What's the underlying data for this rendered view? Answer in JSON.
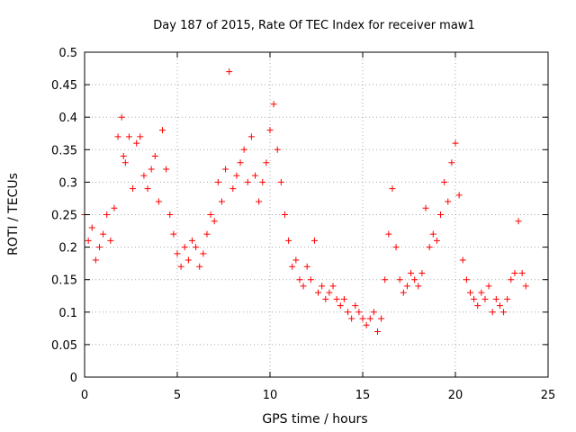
{
  "chart_data": {
    "type": "scatter",
    "title": "Day 187 of 2015, Rate Of TEC Index for receiver maw1",
    "xlabel": "GPS time / hours",
    "ylabel": "ROTI / TECUs",
    "xlim": [
      0,
      25
    ],
    "ylim": [
      0,
      0.5
    ],
    "xticks": [
      0,
      5,
      10,
      15,
      20,
      25
    ],
    "yticks": [
      0,
      0.05,
      0.1,
      0.15,
      0.2,
      0.25,
      0.3,
      0.35,
      0.4,
      0.45,
      0.5
    ],
    "xtick_labels": [
      "0",
      "5",
      "10",
      "15",
      "20",
      "25"
    ],
    "ytick_labels": [
      "0",
      "0.05",
      "0.1",
      "0.15",
      "0.2",
      "0.25",
      "0.3",
      "0.35",
      "0.4",
      "0.45",
      "0.5"
    ],
    "grid": true,
    "marker": "+",
    "color": "#ff0000",
    "series": [
      {
        "x": [
          0.0,
          0.2,
          0.4,
          0.6,
          0.8,
          1.0,
          1.2,
          1.4,
          1.6,
          1.8,
          2.0,
          2.1,
          2.2,
          2.4,
          2.6,
          2.8,
          3.0,
          3.2,
          3.4,
          3.6,
          3.8,
          4.0,
          4.2,
          4.4,
          4.6,
          4.8,
          5.0,
          5.2,
          5.4,
          5.6,
          5.8,
          6.0,
          6.2,
          6.4,
          6.6,
          6.8,
          7.0,
          7.2,
          7.4,
          7.6,
          7.8,
          8.0,
          8.2,
          8.4,
          8.6,
          8.8,
          9.0,
          9.2,
          9.4,
          9.6,
          9.8,
          10.0,
          10.2,
          10.4,
          10.6,
          10.8,
          11.0,
          11.2,
          11.4,
          11.6,
          11.8,
          12.0,
          12.2,
          12.4,
          12.6,
          12.8,
          13.0,
          13.2,
          13.4,
          13.6,
          13.8,
          14.0,
          14.2,
          14.4,
          14.6,
          14.8,
          15.0,
          15.2,
          15.4,
          15.6,
          15.8,
          16.0,
          16.2,
          16.4,
          16.6,
          16.8,
          17.0,
          17.2,
          17.4,
          17.6,
          17.8,
          18.0,
          18.2,
          18.4,
          18.6,
          18.8,
          19.0,
          19.2,
          19.4,
          19.6,
          19.8,
          20.0,
          20.2,
          20.4,
          20.6,
          20.8,
          21.0,
          21.2,
          21.4,
          21.6,
          21.8,
          22.0,
          22.2,
          22.4,
          22.6,
          22.8,
          23.0,
          23.2,
          23.4,
          23.6,
          23.8
        ],
        "y": [
          0.25,
          0.21,
          0.23,
          0.18,
          0.2,
          0.22,
          0.25,
          0.21,
          0.26,
          0.37,
          0.4,
          0.34,
          0.33,
          0.37,
          0.29,
          0.36,
          0.37,
          0.31,
          0.29,
          0.32,
          0.34,
          0.27,
          0.38,
          0.32,
          0.25,
          0.22,
          0.19,
          0.17,
          0.2,
          0.18,
          0.21,
          0.2,
          0.17,
          0.19,
          0.22,
          0.25,
          0.24,
          0.3,
          0.27,
          0.32,
          0.47,
          0.29,
          0.31,
          0.33,
          0.35,
          0.3,
          0.37,
          0.31,
          0.27,
          0.3,
          0.33,
          0.38,
          0.42,
          0.35,
          0.3,
          0.25,
          0.21,
          0.17,
          0.18,
          0.15,
          0.14,
          0.17,
          0.15,
          0.21,
          0.13,
          0.14,
          0.12,
          0.13,
          0.14,
          0.12,
          0.11,
          0.12,
          0.1,
          0.09,
          0.11,
          0.1,
          0.09,
          0.08,
          0.09,
          0.1,
          0.07,
          0.09,
          0.15,
          0.22,
          0.29,
          0.2,
          0.15,
          0.13,
          0.14,
          0.16,
          0.15,
          0.14,
          0.16,
          0.26,
          0.2,
          0.22,
          0.21,
          0.25,
          0.3,
          0.27,
          0.33,
          0.36,
          0.28,
          0.18,
          0.15,
          0.13,
          0.12,
          0.11,
          0.13,
          0.12,
          0.14,
          0.1,
          0.12,
          0.11,
          0.1,
          0.12,
          0.15,
          0.16,
          0.24,
          0.16,
          0.14
        ]
      }
    ]
  }
}
